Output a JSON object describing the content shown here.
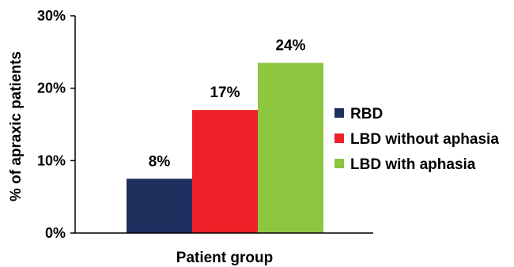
{
  "chart_data": {
    "type": "bar",
    "title": "",
    "xlabel": "Patient group",
    "ylabel": "% of apraxic patients",
    "ylim": [
      0,
      30
    ],
    "y_ticks": [
      {
        "value": 0,
        "label": "0%"
      },
      {
        "value": 10,
        "label": "10%"
      },
      {
        "value": 20,
        "label": "20%"
      },
      {
        "value": 30,
        "label": "30%"
      }
    ],
    "grid": false,
    "legend_position": "right",
    "series": [
      {
        "name": "RBD",
        "value": 7.5,
        "label": "8%",
        "color": "#1f2f5e"
      },
      {
        "name": "LBD without aphasia",
        "value": 17,
        "label": "17%",
        "color": "#ee2128"
      },
      {
        "name": "LBD with aphasia",
        "value": 23.5,
        "label": "24%",
        "color": "#8dc63f"
      }
    ]
  }
}
